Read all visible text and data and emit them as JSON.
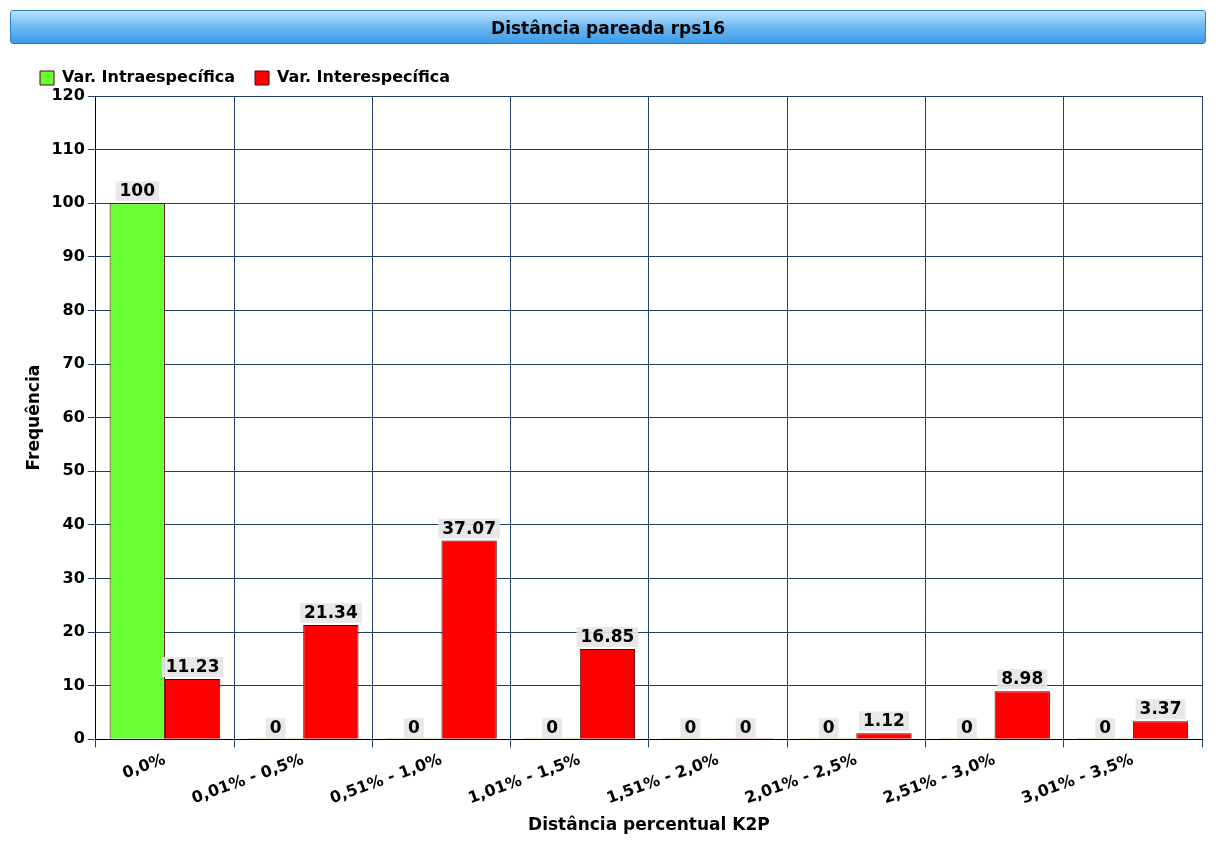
{
  "chart_data": {
    "type": "bar",
    "title": "Distância pareada rps16",
    "xlabel": "Distância percentual K2P",
    "ylabel": "Frequência",
    "categories": [
      "0,0%",
      "0,01% - 0,5%",
      "0,51% - 1,0%",
      "1,01% - 1,5%",
      "1,51% - 2,0%",
      "2,01% - 2,5%",
      "2,51% - 3,0%",
      "3,01% - 3,5%"
    ],
    "series": [
      {
        "name": "Var. Intraespecífica",
        "color": "#66ff33",
        "values": [
          100,
          0,
          0,
          0,
          0,
          0,
          0,
          0
        ]
      },
      {
        "name": "Var. Interespecífica",
        "color": "#ff0000",
        "values": [
          11.23,
          21.34,
          37.07,
          16.85,
          0,
          1.12,
          8.98,
          3.37
        ]
      }
    ],
    "ylim": [
      0,
      120
    ],
    "yticks": [
      0,
      10,
      20,
      30,
      40,
      50,
      60,
      70,
      80,
      90,
      100,
      110,
      120
    ],
    "grid": true,
    "legend": "top left",
    "data_labels": true
  }
}
